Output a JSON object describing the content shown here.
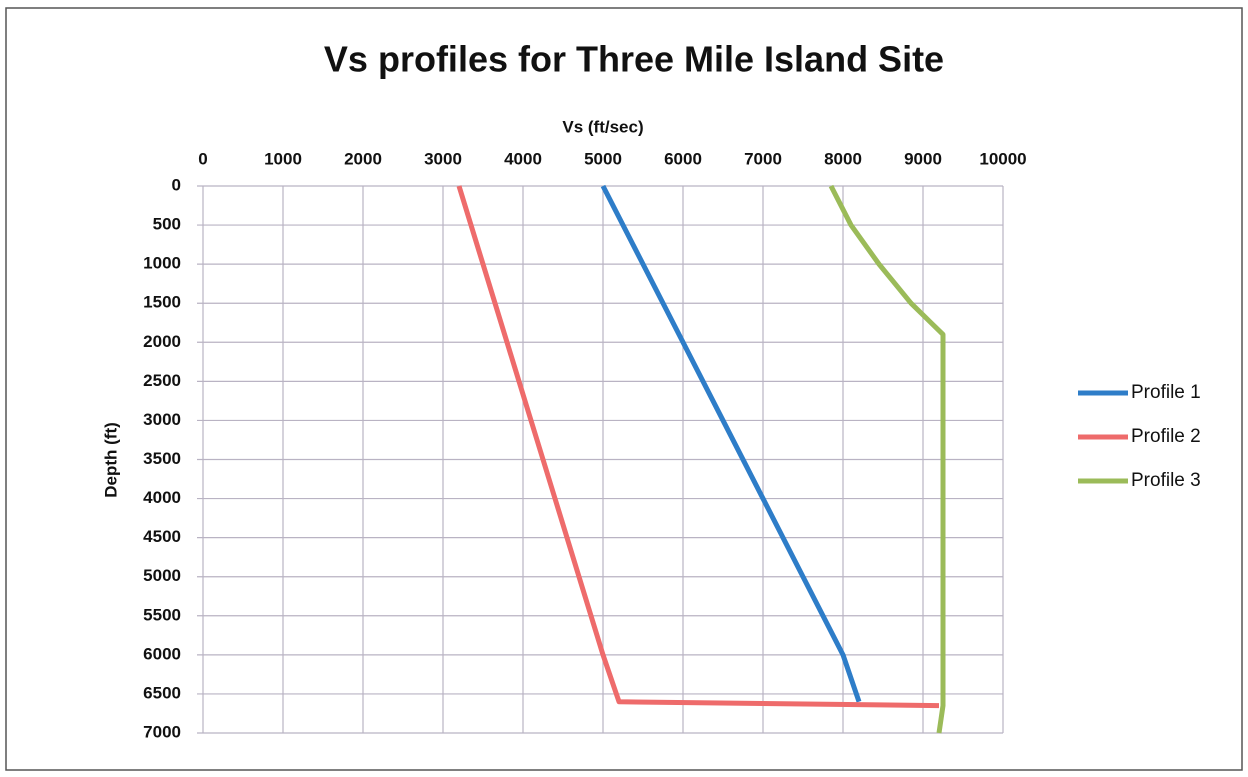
{
  "chart_data": {
    "type": "line",
    "title": "Vs profiles for Three Mile Island Site",
    "x_label": "Vs (ft/sec)",
    "y_label": "Depth (ft)",
    "xlim": [
      0,
      10000
    ],
    "xticks": [
      0,
      1000,
      2000,
      3000,
      4000,
      5000,
      6000,
      7000,
      8000,
      9000,
      10000
    ],
    "ylim": [
      0,
      7000
    ],
    "yticks": [
      0,
      500,
      1000,
      1500,
      2000,
      2500,
      3000,
      3500,
      4000,
      4500,
      5000,
      5500,
      6000,
      6500,
      7000
    ],
    "y_inverted": true,
    "x_axis_position": "top",
    "grid": true,
    "legend": "right",
    "series": [
      {
        "name": "Profile 1",
        "color": "#2e7dc8",
        "x": [
          5000,
          5500,
          6000,
          6500,
          7000,
          7500,
          8000,
          8200
        ],
        "values": [
          0,
          1000,
          2000,
          3000,
          4000,
          5000,
          6000,
          6600
        ]
      },
      {
        "name": "Profile 2",
        "color": "#ee6b6b",
        "x": [
          3200,
          3500,
          3800,
          4100,
          4400,
          4700,
          5000,
          5200,
          9200
        ],
        "values": [
          0,
          1000,
          2000,
          3000,
          4000,
          5000,
          6000,
          6600,
          6650
        ]
      },
      {
        "name": "Profile 3",
        "color": "#9bbb59",
        "x": [
          7850,
          8100,
          8450,
          8850,
          9100,
          9250,
          9250,
          9200
        ],
        "values": [
          0,
          500,
          1000,
          1500,
          1750,
          1900,
          6650,
          7000
        ]
      }
    ]
  }
}
